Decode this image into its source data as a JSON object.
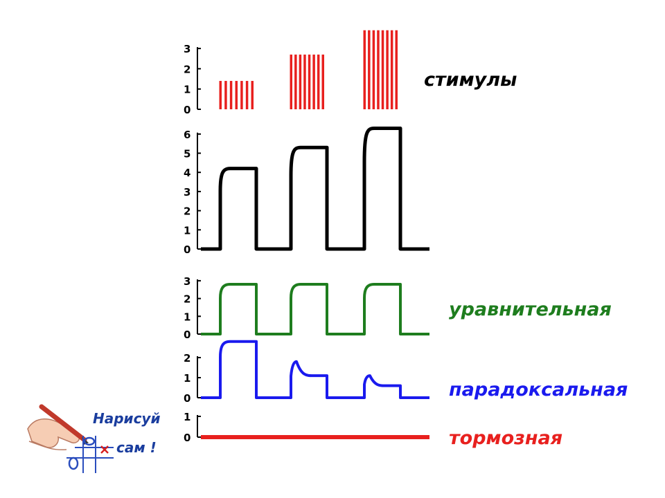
{
  "chart_data": [
    {
      "type": "bar",
      "label": "стимулы",
      "color": "#e8201e",
      "y_ticks": [
        "0",
        "1",
        "2",
        "3"
      ],
      "ylim": [
        0,
        3
      ],
      "stimuli": [
        {
          "strength": 1.4,
          "stripes": 7
        },
        {
          "strength": 2.7,
          "stripes": 8
        },
        {
          "strength": 3.9,
          "stripes": 8
        }
      ]
    },
    {
      "type": "line",
      "label": "",
      "color": "#000000",
      "y_ticks": [
        "0",
        "1",
        "2",
        "3",
        "4",
        "5",
        "6"
      ],
      "ylim": [
        0,
        6
      ],
      "responses": [
        4.2,
        5.3,
        6.3
      ]
    },
    {
      "type": "line",
      "label": "уравнительная",
      "color": "#1e7d1e",
      "y_ticks": [
        "0",
        "1",
        "2",
        "3"
      ],
      "ylim": [
        0,
        3
      ],
      "responses": [
        2.8,
        2.8,
        2.8
      ]
    },
    {
      "type": "line",
      "label": "парадоксальная",
      "color": "#1a1aee",
      "y_ticks": [
        "0",
        "1",
        "2"
      ],
      "ylim": [
        0,
        2
      ],
      "responses": [
        {
          "peak": 2.8,
          "plateau": 2.8
        },
        {
          "peak": 1.8,
          "plateau": 1.1
        },
        {
          "peak": 1.1,
          "plateau": 0.6
        }
      ]
    },
    {
      "type": "line",
      "label": "тормозная",
      "color": "#e8201e",
      "y_ticks": [
        "0",
        "1"
      ],
      "ylim": [
        0,
        1
      ],
      "responses": [
        0,
        0,
        0
      ]
    }
  ],
  "badge": {
    "line1": "Нарисуй",
    "line2": "сам !",
    "icon": "hand-pencil-icon",
    "icon_color": "#c0392b",
    "text_color": "#1a3d9e"
  }
}
